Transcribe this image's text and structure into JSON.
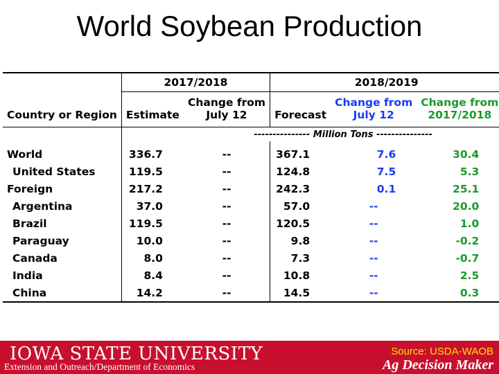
{
  "title": "World Soybean Production",
  "table": {
    "group_2017": "2017/2018",
    "group_2018": "2018/2019",
    "col_country_line1": "",
    "col_country": "Country or Region",
    "col_estimate": "Estimate",
    "col_change_july_line1": "Change from",
    "col_change_july_line2": "July 12",
    "col_forecast": "Forecast",
    "col_change_july_b_line1": "Change from",
    "col_change_july_b_line2": "July 12",
    "col_change_1718_line1": "Change from",
    "col_change_1718_line2": "2017/2018",
    "units": "--------------- Million Tons ---------------",
    "rows": [
      {
        "region": "World",
        "estimate": "336.7",
        "change_1": "--",
        "forecast": "367.1",
        "change_2": "7.6",
        "change_3": "30.4"
      },
      {
        "region": "United States",
        "estimate": "119.5",
        "change_1": "--",
        "forecast": "124.8",
        "change_2": "7.5",
        "change_3": "5.3"
      },
      {
        "region": "Foreign",
        "estimate": "217.2",
        "change_1": "--",
        "forecast": "242.3",
        "change_2": "0.1",
        "change_3": "25.1"
      },
      {
        "region": "Argentina",
        "estimate": "37.0",
        "change_1": "--",
        "forecast": "57.0",
        "change_2": "--",
        "change_3": "20.0"
      },
      {
        "region": "Brazil",
        "estimate": "119.5",
        "change_1": "--",
        "forecast": "120.5",
        "change_2": "--",
        "change_3": "1.0"
      },
      {
        "region": "Paraguay",
        "estimate": "10.0",
        "change_1": "--",
        "forecast": "9.8",
        "change_2": "--",
        "change_3": "-0.2"
      },
      {
        "region": "Canada",
        "estimate": "8.0",
        "change_1": "--",
        "forecast": "7.3",
        "change_2": "--",
        "change_3": "-0.7"
      },
      {
        "region": "India",
        "estimate": "8.4",
        "change_1": "--",
        "forecast": "10.8",
        "change_2": "--",
        "change_3": "2.5"
      },
      {
        "region": "China",
        "estimate": "14.2",
        "change_1": "--",
        "forecast": "14.5",
        "change_2": "--",
        "change_3": "0.3"
      }
    ]
  },
  "footer": {
    "university": "IOWA STATE UNIVERSITY",
    "extension": "Extension and Outreach/Department of Economics",
    "source": "Source: USDA-WAOB",
    "brand": "Ag Decision Maker"
  },
  "colors": {
    "blue": "#1a3cf0",
    "green": "#1a9a2a",
    "footer_bg": "#c8102e",
    "source_text": "#ffe000"
  }
}
